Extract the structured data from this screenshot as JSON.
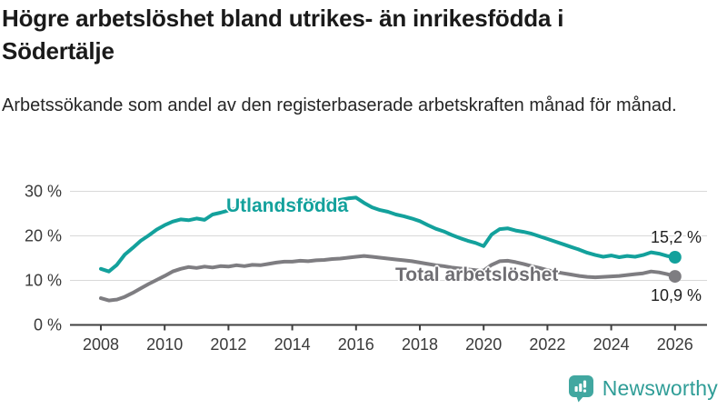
{
  "header": {
    "title": "Högre arbetslöshet bland utrikes- än inrikesfödda i Södertälje",
    "subtitle": "Arbetssökande som andel av den registerbaserade arbetskraften månad för månad."
  },
  "chart_data": {
    "type": "line",
    "title": "Högre arbetslöshet bland utrikes- än inrikesfödda i Södertälje",
    "subtitle": "Arbetssökande som andel av den registerbaserade arbetskraften månad för månad.",
    "unit": "%",
    "xlabel": "",
    "ylabel": "",
    "xlim": [
      2007.0,
      2026.9
    ],
    "ylim": [
      0,
      31
    ],
    "grid": "horizontal",
    "legend": "inline-labels",
    "x_ticks": [
      2008,
      2010,
      2012,
      2014,
      2016,
      2018,
      2020,
      2022,
      2024,
      2026
    ],
    "x_tick_labels": [
      "2008",
      "2010",
      "2012",
      "2014",
      "2016",
      "2018",
      "2020",
      "2022",
      "2024",
      "2026"
    ],
    "y_ticks": [
      0,
      10,
      20,
      30
    ],
    "y_tick_labels": [
      "0 %",
      "10 %",
      "20 %",
      "30 %"
    ],
    "style": {
      "grid_color": "#d9d9d9",
      "axis_color": "#3f3f3f",
      "tick_color": "#3a3a3a"
    },
    "series": [
      {
        "id": "utlandsfodda",
        "name": "Utlandsfödda",
        "color": "#13a19c",
        "end_label": "15,2 %",
        "end_value": 15.2,
        "x_start": 2008.0,
        "x_step": 0.25,
        "values": [
          12.6,
          12.0,
          13.5,
          15.8,
          17.3,
          18.9,
          20.1,
          21.4,
          22.4,
          23.2,
          23.7,
          23.5,
          23.9,
          23.6,
          24.8,
          25.2,
          25.7,
          26.2,
          26.4,
          26.3,
          26.4,
          26.6,
          26.8,
          26.9,
          27.0,
          27.2,
          27.3,
          27.5,
          27.6,
          27.8,
          28.1,
          28.4,
          28.6,
          27.4,
          26.4,
          25.8,
          25.4,
          24.8,
          24.4,
          23.9,
          23.3,
          22.4,
          21.6,
          21.0,
          20.2,
          19.5,
          18.9,
          18.4,
          17.7,
          20.3,
          21.5,
          21.7,
          21.2,
          20.9,
          20.5,
          19.9,
          19.3,
          18.7,
          18.1,
          17.5,
          16.9,
          16.2,
          15.7,
          15.3,
          15.6,
          15.2,
          15.5,
          15.3,
          15.7,
          16.3,
          16.0,
          15.5,
          15.2
        ]
      },
      {
        "id": "total",
        "name": "Total arbetslöshet",
        "color": "#7e7d81",
        "end_label": "10,9 %",
        "end_value": 10.9,
        "x_start": 2008.0,
        "x_step": 0.25,
        "values": [
          6.0,
          5.5,
          5.7,
          6.3,
          7.2,
          8.2,
          9.2,
          10.1,
          11.0,
          12.0,
          12.6,
          13.0,
          12.8,
          13.1,
          12.9,
          13.2,
          13.1,
          13.4,
          13.2,
          13.5,
          13.4,
          13.7,
          14.0,
          14.2,
          14.2,
          14.4,
          14.3,
          14.5,
          14.6,
          14.8,
          14.9,
          15.1,
          15.3,
          15.5,
          15.3,
          15.1,
          14.9,
          14.7,
          14.5,
          14.3,
          14.0,
          13.7,
          13.4,
          13.2,
          12.9,
          12.7,
          12.5,
          12.3,
          12.2,
          13.5,
          14.3,
          14.4,
          14.1,
          13.7,
          13.2,
          12.8,
          12.3,
          11.9,
          11.6,
          11.3,
          11.0,
          10.8,
          10.7,
          10.8,
          10.9,
          11.0,
          11.2,
          11.4,
          11.6,
          12.0,
          11.8,
          11.4,
          10.9
        ]
      }
    ]
  },
  "colors": {
    "series_teal": "#13a19c",
    "series_gray": "#7e7d81",
    "gray_label": "#6f6e73",
    "title": "#1a1a1a",
    "grid": "#d9d9d9",
    "axis": "#3f3f3f",
    "brand_text": "#2f9d97",
    "brand_icon": "#41a7a0"
  },
  "footer": {
    "brand": "Newsworthy"
  }
}
